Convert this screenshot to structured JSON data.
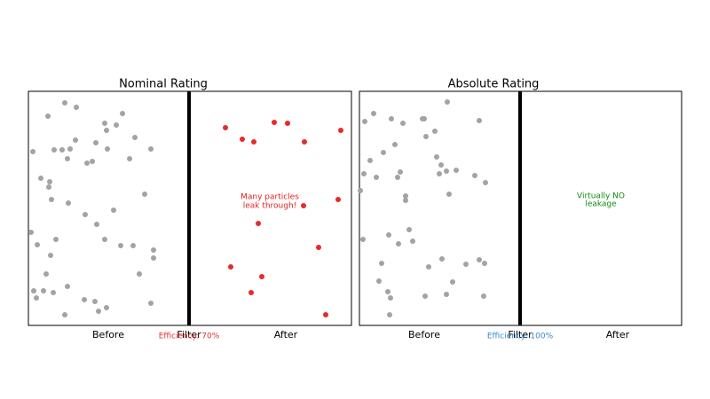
{
  "panels": [
    {
      "title": "Nominal Rating",
      "labels": [
        "Before",
        "Filter",
        "After"
      ],
      "efficiency": "Efficiency: 70%",
      "annotation": [
        "Many particles",
        "leak through!"
      ]
    },
    {
      "title": "Absolute Rating",
      "labels": [
        "Before",
        "Filter",
        "After"
      ],
      "efficiency": "Efficiency: 100%",
      "annotation": [
        "Virtually NO",
        "leakage"
      ]
    }
  ]
}
